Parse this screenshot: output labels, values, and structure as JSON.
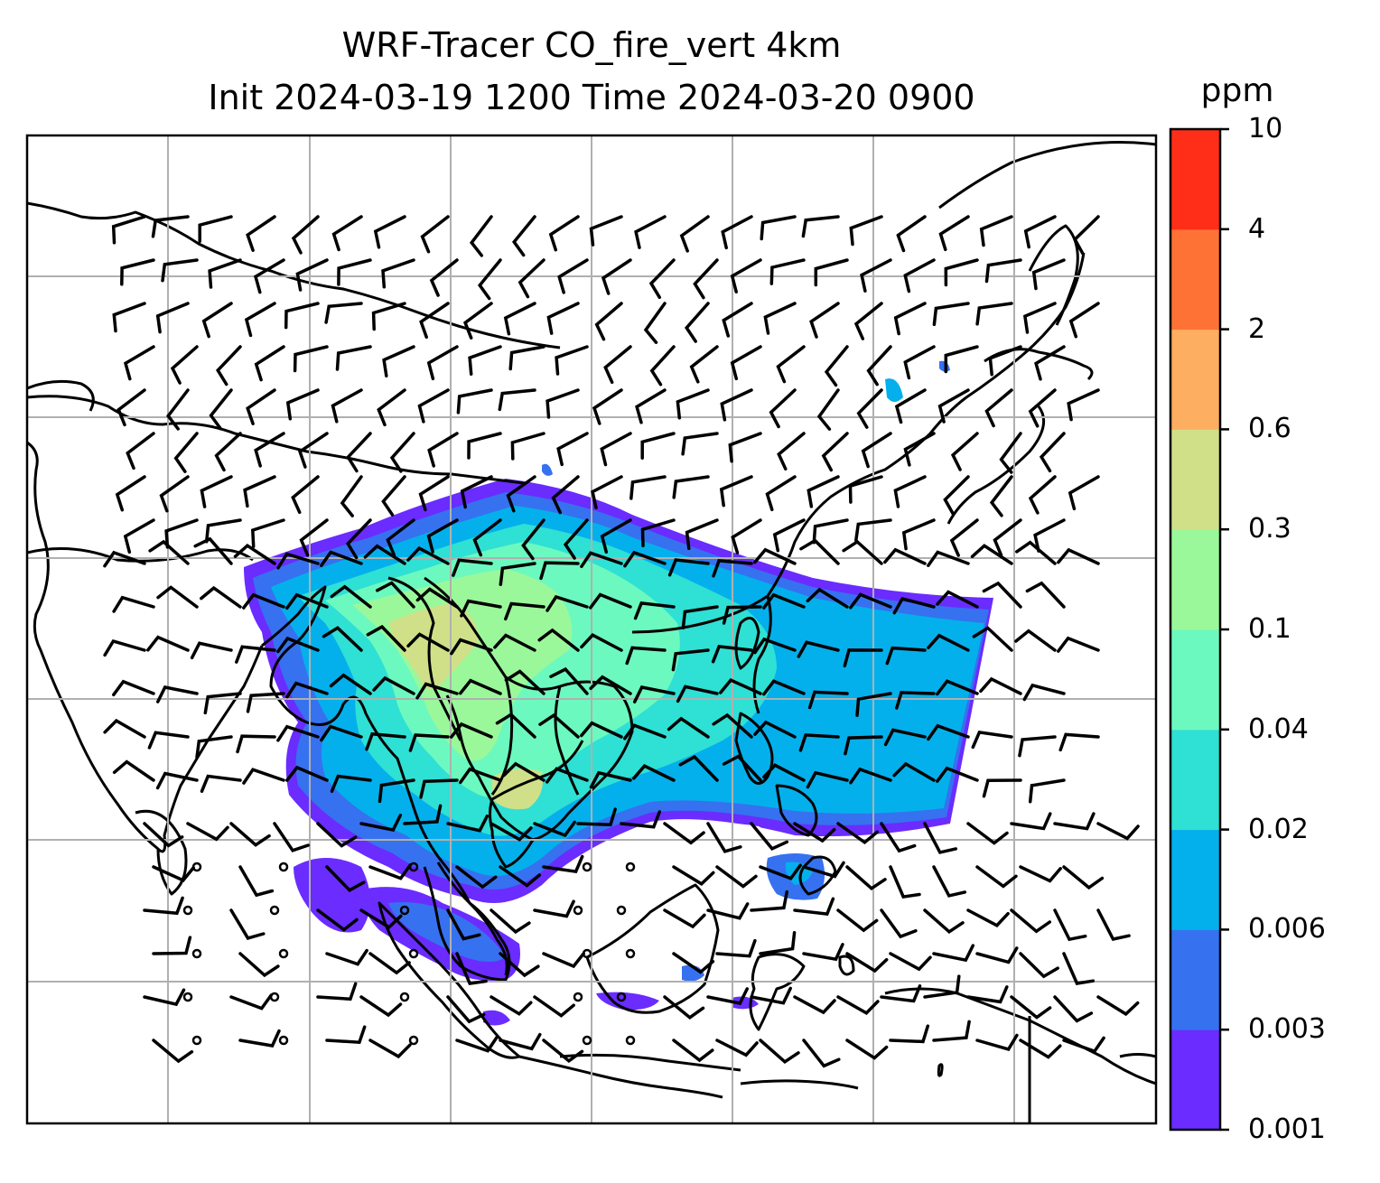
{
  "title": {
    "line1": "WRF-Tracer CO_fire_vert 4km",
    "line2": "Init 2024-03-19 1200 Time 2024-03-20 0900"
  },
  "colorbar": {
    "unit": "ppm",
    "ticks": [
      "0.001",
      "0.003",
      "0.006",
      "0.02",
      "0.04",
      "0.1",
      "0.3",
      "0.6",
      "2",
      "4",
      "10"
    ],
    "colors": [
      "#6a2cff",
      "#3671f0",
      "#04b0eb",
      "#2fe0d4",
      "#6cf9bf",
      "#9bf89a",
      "#d0e088",
      "#fdae61",
      "#ff7236",
      "#ff2e18"
    ]
  },
  "map": {
    "gridlines": true,
    "coastline_color": "#000000",
    "gridline_color": "#b0b0b0",
    "features": [
      "coastlines",
      "country-borders",
      "wind-barbs",
      "tracer-plume"
    ]
  }
}
